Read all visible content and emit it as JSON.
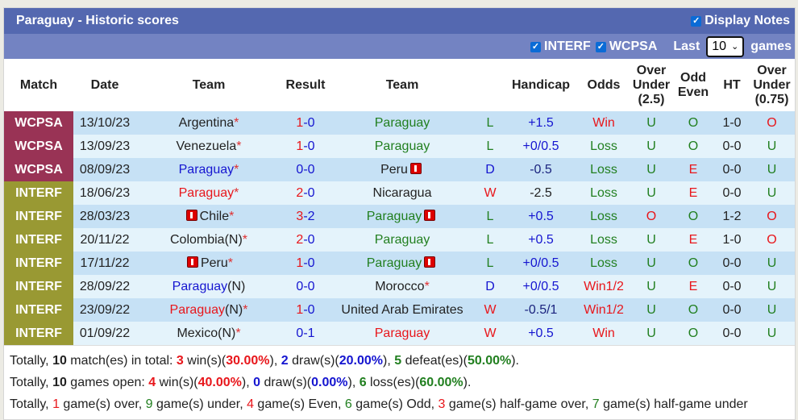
{
  "title": "Paraguay - Historic scores",
  "display_notes": {
    "label": "Display Notes",
    "checked": true
  },
  "filters": {
    "interf": {
      "label": "INTERF",
      "checked": true
    },
    "wcpsa": {
      "label": "WCPSA",
      "checked": true
    },
    "last_label": "Last",
    "last_value": "10",
    "games_label": "games"
  },
  "colors": {
    "title_bg": "#5468b0",
    "filter_bg": "#7383c2",
    "WCPSA": "#993355",
    "INTERF": "#999933",
    "win": "#e8161b",
    "draw": "#1515d0",
    "loss": "#217f1f"
  },
  "headers": [
    "Match",
    "Date",
    "Team",
    "Result",
    "Team",
    "",
    "Handicap",
    "Odds",
    "Over Under (2.5)",
    "Odd Even",
    "HT",
    "Over Under (0.75)"
  ],
  "rows": [
    {
      "match": "WCPSA",
      "date": "13/10/23",
      "home": "Argentina",
      "home_star": "*",
      "home_color": "black",
      "home_card": false,
      "hs": "1",
      "as": "0",
      "hs_color": "red",
      "away": "Paraguay",
      "away_star": "",
      "away_color": "green",
      "away_card": false,
      "wl": "L",
      "wl_color": "green",
      "hcp": "+1.5",
      "hcp_color": "blue",
      "odds": "Win",
      "odds_color": "red",
      "ou": "U",
      "ou_color": "green",
      "oe": "O",
      "oe_color": "green",
      "ht": "1-0",
      "ou75": "O",
      "ou75_color": "red"
    },
    {
      "match": "WCPSA",
      "date": "13/09/23",
      "home": "Venezuela",
      "home_star": "*",
      "home_color": "black",
      "home_card": false,
      "hs": "1",
      "as": "0",
      "hs_color": "red",
      "away": "Paraguay",
      "away_star": "",
      "away_color": "green",
      "away_card": false,
      "wl": "L",
      "wl_color": "green",
      "hcp": "+0/0.5",
      "hcp_color": "blue",
      "odds": "Loss",
      "odds_color": "green",
      "ou": "U",
      "ou_color": "green",
      "oe": "O",
      "oe_color": "green",
      "ht": "0-0",
      "ou75": "U",
      "ou75_color": "green"
    },
    {
      "match": "WCPSA",
      "date": "08/09/23",
      "home": "Paraguay",
      "home_star": "*",
      "home_color": "blue",
      "home_card": false,
      "hs": "0",
      "as": "0",
      "hs_color": "blue",
      "away": "Peru",
      "away_star": "",
      "away_color": "black",
      "away_card": true,
      "wl": "D",
      "wl_color": "blue",
      "hcp": "-0.5",
      "hcp_color": "navy",
      "odds": "Loss",
      "odds_color": "green",
      "ou": "U",
      "ou_color": "green",
      "oe": "E",
      "oe_color": "red",
      "ht": "0-0",
      "ou75": "U",
      "ou75_color": "green"
    },
    {
      "match": "INTERF",
      "date": "18/06/23",
      "home": "Paraguay",
      "home_star": "*",
      "home_color": "red",
      "home_card": false,
      "hs": "2",
      "as": "0",
      "hs_color": "red",
      "away": "Nicaragua",
      "away_star": "",
      "away_color": "black",
      "away_card": false,
      "wl": "W",
      "wl_color": "red",
      "hcp": "-2.5",
      "hcp_color": "black",
      "odds": "Loss",
      "odds_color": "green",
      "ou": "U",
      "ou_color": "green",
      "oe": "E",
      "oe_color": "red",
      "ht": "0-0",
      "ou75": "U",
      "ou75_color": "green"
    },
    {
      "match": "INTERF",
      "date": "28/03/23",
      "home": "Chile",
      "home_star": "*",
      "home_color": "black",
      "home_card": true,
      "hs": "3",
      "as": "2",
      "hs_color": "red",
      "away": "Paraguay",
      "away_star": "",
      "away_color": "green",
      "away_card": true,
      "wl": "L",
      "wl_color": "green",
      "hcp": "+0.5",
      "hcp_color": "blue",
      "odds": "Loss",
      "odds_color": "green",
      "ou": "O",
      "ou_color": "red",
      "oe": "O",
      "oe_color": "green",
      "ht": "1-2",
      "ou75": "O",
      "ou75_color": "red"
    },
    {
      "match": "INTERF",
      "date": "20/11/22",
      "home": "Colombia(N)",
      "home_star": "*",
      "home_color": "black",
      "home_card": false,
      "hs": "2",
      "as": "0",
      "hs_color": "red",
      "away": "Paraguay",
      "away_star": "",
      "away_color": "green",
      "away_card": false,
      "wl": "L",
      "wl_color": "green",
      "hcp": "+0.5",
      "hcp_color": "blue",
      "odds": "Loss",
      "odds_color": "green",
      "ou": "U",
      "ou_color": "green",
      "oe": "E",
      "oe_color": "red",
      "ht": "1-0",
      "ou75": "O",
      "ou75_color": "red"
    },
    {
      "match": "INTERF",
      "date": "17/11/22",
      "home": "Peru",
      "home_star": "*",
      "home_color": "black",
      "home_card": true,
      "hs": "1",
      "as": "0",
      "hs_color": "red",
      "away": "Paraguay",
      "away_star": "",
      "away_color": "green",
      "away_card": true,
      "wl": "L",
      "wl_color": "green",
      "hcp": "+0/0.5",
      "hcp_color": "blue",
      "odds": "Loss",
      "odds_color": "green",
      "ou": "U",
      "ou_color": "green",
      "oe": "O",
      "oe_color": "green",
      "ht": "0-0",
      "ou75": "U",
      "ou75_color": "green"
    },
    {
      "match": "INTERF",
      "date": "28/09/22",
      "home": "Paraguay",
      "home_suffix": "(N)",
      "home_star": "",
      "home_color": "blue",
      "home_card": false,
      "hs": "0",
      "as": "0",
      "hs_color": "blue",
      "away": "Morocco",
      "away_star": "*",
      "away_color": "black",
      "away_card": false,
      "wl": "D",
      "wl_color": "blue",
      "hcp": "+0/0.5",
      "hcp_color": "blue",
      "odds": "Win1/2",
      "odds_color": "red",
      "ou": "U",
      "ou_color": "green",
      "oe": "E",
      "oe_color": "red",
      "ht": "0-0",
      "ou75": "U",
      "ou75_color": "green"
    },
    {
      "match": "INTERF",
      "date": "23/09/22",
      "home": "Paraguay",
      "home_suffix": "(N)",
      "home_star": "*",
      "home_color": "red",
      "home_card": false,
      "hs": "1",
      "as": "0",
      "hs_color": "red",
      "away": "United Arab Emirates",
      "away_star": "",
      "away_color": "black",
      "away_card": false,
      "wl": "W",
      "wl_color": "red",
      "hcp": "-0.5/1",
      "hcp_color": "navy",
      "odds": "Win1/2",
      "odds_color": "red",
      "ou": "U",
      "ou_color": "green",
      "oe": "O",
      "oe_color": "green",
      "ht": "0-0",
      "ou75": "U",
      "ou75_color": "green"
    },
    {
      "match": "INTERF",
      "date": "01/09/22",
      "home": "Mexico(N)",
      "home_star": "*",
      "home_color": "black",
      "home_card": false,
      "hs": "0",
      "as": "1",
      "hs_color": "blue",
      "away": "Paraguay",
      "away_star": "",
      "away_color": "red",
      "away_card": false,
      "wl": "W",
      "wl_color": "red",
      "hcp": "+0.5",
      "hcp_color": "blue",
      "odds": "Win",
      "odds_color": "red",
      "ou": "U",
      "ou_color": "green",
      "oe": "O",
      "oe_color": "green",
      "ht": "0-0",
      "ou75": "U",
      "ou75_color": "green"
    }
  ],
  "summary": [
    [
      {
        "t": "Totally, "
      },
      {
        "t": "10",
        "c": "black",
        "b": true
      },
      {
        "t": " match(es) in total: "
      },
      {
        "t": "3",
        "c": "red",
        "b": true
      },
      {
        "t": " win(s)("
      },
      {
        "t": "30.00%",
        "c": "red",
        "b": true
      },
      {
        "t": "), "
      },
      {
        "t": "2",
        "c": "blue",
        "b": true
      },
      {
        "t": " draw(s)("
      },
      {
        "t": "20.00%",
        "c": "blue",
        "b": true
      },
      {
        "t": "), "
      },
      {
        "t": "5",
        "c": "green",
        "b": true
      },
      {
        "t": " defeat(es)("
      },
      {
        "t": "50.00%",
        "c": "green",
        "b": true
      },
      {
        "t": ")."
      }
    ],
    [
      {
        "t": "Totally, "
      },
      {
        "t": "10",
        "c": "black",
        "b": true
      },
      {
        "t": " games open: "
      },
      {
        "t": "4",
        "c": "red",
        "b": true
      },
      {
        "t": " win(s)("
      },
      {
        "t": "40.00%",
        "c": "red",
        "b": true
      },
      {
        "t": "), "
      },
      {
        "t": "0",
        "c": "blue",
        "b": true
      },
      {
        "t": " draw(s)("
      },
      {
        "t": "0.00%",
        "c": "blue",
        "b": true
      },
      {
        "t": "), "
      },
      {
        "t": "6",
        "c": "green",
        "b": true
      },
      {
        "t": " loss(es)("
      },
      {
        "t": "60.00%",
        "c": "green",
        "b": true
      },
      {
        "t": ")."
      }
    ],
    [
      {
        "t": "Totally, "
      },
      {
        "t": "1",
        "c": "red"
      },
      {
        "t": " game(s) over, "
      },
      {
        "t": "9",
        "c": "green"
      },
      {
        "t": " game(s) under, "
      },
      {
        "t": "4",
        "c": "red"
      },
      {
        "t": " game(s) Even, "
      },
      {
        "t": "6",
        "c": "green"
      },
      {
        "t": " game(s) Odd, "
      },
      {
        "t": "3",
        "c": "red"
      },
      {
        "t": " game(s) half-game over, "
      },
      {
        "t": "7",
        "c": "green"
      },
      {
        "t": " game(s) half-game under"
      }
    ]
  ]
}
